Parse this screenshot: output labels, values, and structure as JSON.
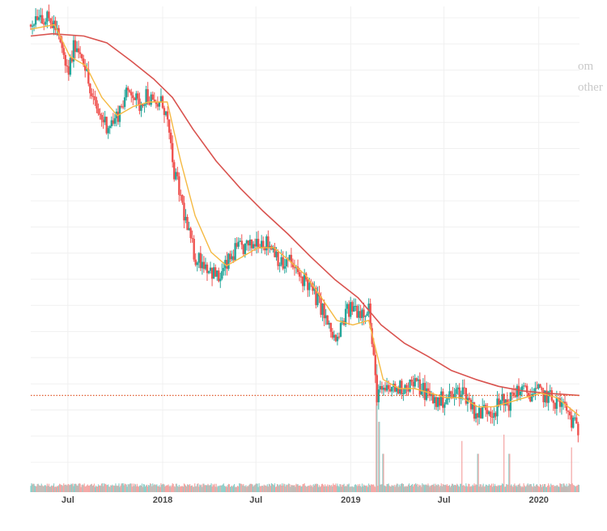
{
  "chart_data": {
    "type": "candlestick",
    "title": "",
    "xlabel": "",
    "ylabel": "",
    "x_tick_labels": [
      "Jul",
      "2018",
      "Jul",
      "2019",
      "Jul",
      "2020"
    ],
    "x_range": [
      "2017-04-20",
      "2020-03-20"
    ],
    "y_range_relative": [
      0,
      100
    ],
    "grid": true,
    "colors": {
      "up": "#26a69a",
      "down": "#ef5350",
      "ma_short": "#f5b942",
      "ma_long": "#d9534f",
      "price_line": "#e05a2b",
      "volume_up": "#8fcfc9",
      "volume_down": "#f4a5a3",
      "grid": "#f0f0f0"
    },
    "price_line_level": 14.5,
    "series": [
      {
        "name": "",
        "kind": "close",
        "points": [
          [
            "2017-04-20",
            96
          ],
          [
            "2017-05-05",
            99
          ],
          [
            "2017-05-20",
            97
          ],
          [
            "2017-06-05",
            96
          ],
          [
            "2017-06-20",
            90
          ],
          [
            "2017-07-01",
            85
          ],
          [
            "2017-07-15",
            92
          ],
          [
            "2017-07-31",
            89
          ],
          [
            "2017-08-15",
            80
          ],
          [
            "2017-09-01",
            76
          ],
          [
            "2017-09-15",
            74
          ],
          [
            "2017-10-01",
            75
          ],
          [
            "2017-10-15",
            79
          ],
          [
            "2017-11-01",
            82
          ],
          [
            "2017-11-15",
            78
          ],
          [
            "2017-12-01",
            81
          ],
          [
            "2017-12-15",
            78
          ],
          [
            "2018-01-01",
            79
          ],
          [
            "2018-01-10",
            75
          ],
          [
            "2018-01-20",
            65
          ],
          [
            "2018-02-05",
            58
          ],
          [
            "2018-02-20",
            50
          ],
          [
            "2018-03-05",
            45
          ],
          [
            "2018-03-20",
            44
          ],
          [
            "2018-04-05",
            42
          ],
          [
            "2018-04-20",
            40
          ],
          [
            "2018-05-05",
            43
          ],
          [
            "2018-05-20",
            46
          ],
          [
            "2018-06-05",
            47
          ],
          [
            "2018-06-20",
            47
          ],
          [
            "2018-07-05",
            49
          ],
          [
            "2018-07-20",
            48
          ],
          [
            "2018-08-05",
            47
          ],
          [
            "2018-08-20",
            43
          ],
          [
            "2018-09-05",
            44
          ],
          [
            "2018-09-20",
            41
          ],
          [
            "2018-10-05",
            40
          ],
          [
            "2018-10-20",
            37
          ],
          [
            "2018-11-05",
            34
          ],
          [
            "2018-11-20",
            29
          ],
          [
            "2018-12-05",
            26
          ],
          [
            "2018-12-20",
            32
          ],
          [
            "2019-01-05",
            34
          ],
          [
            "2019-01-20",
            33
          ],
          [
            "2019-02-05",
            34
          ],
          [
            "2019-02-20",
            15
          ],
          [
            "2019-03-05",
            15
          ],
          [
            "2019-03-20",
            16
          ],
          [
            "2019-04-05",
            16
          ],
          [
            "2019-04-20",
            17
          ],
          [
            "2019-05-05",
            17
          ],
          [
            "2019-05-20",
            16
          ],
          [
            "2019-06-05",
            14
          ],
          [
            "2019-06-20",
            13
          ],
          [
            "2019-07-05",
            14
          ],
          [
            "2019-07-20",
            14.5
          ],
          [
            "2019-08-05",
            16
          ],
          [
            "2019-08-20",
            13
          ],
          [
            "2019-09-05",
            10
          ],
          [
            "2019-09-20",
            12
          ],
          [
            "2019-10-05",
            11
          ],
          [
            "2019-10-20",
            13
          ],
          [
            "2019-11-05",
            13
          ],
          [
            "2019-11-20",
            16
          ],
          [
            "2019-12-05",
            15
          ],
          [
            "2019-12-20",
            15
          ],
          [
            "2020-01-05",
            15
          ],
          [
            "2020-01-20",
            14
          ],
          [
            "2020-02-05",
            13
          ],
          [
            "2020-02-20",
            12
          ],
          [
            "2020-03-05",
            9
          ],
          [
            "2020-03-20",
            6
          ]
        ]
      },
      {
        "name": "",
        "kind": "moving_average_short",
        "points": [
          [
            "2017-04-20",
            95
          ],
          [
            "2017-06-05",
            96
          ],
          [
            "2017-07-05",
            89
          ],
          [
            "2017-08-05",
            87
          ],
          [
            "2017-09-05",
            80
          ],
          [
            "2017-10-05",
            76
          ],
          [
            "2017-11-05",
            78
          ],
          [
            "2017-12-05",
            79
          ],
          [
            "2018-01-10",
            79
          ],
          [
            "2018-02-05",
            66
          ],
          [
            "2018-03-05",
            54
          ],
          [
            "2018-04-05",
            46
          ],
          [
            "2018-05-05",
            43
          ],
          [
            "2018-06-05",
            45
          ],
          [
            "2018-07-05",
            47
          ],
          [
            "2018-08-05",
            47
          ],
          [
            "2018-09-05",
            44
          ],
          [
            "2018-10-05",
            41
          ],
          [
            "2018-11-05",
            36
          ],
          [
            "2018-12-05",
            31
          ],
          [
            "2019-01-05",
            30
          ],
          [
            "2019-02-05",
            31
          ],
          [
            "2019-03-05",
            18
          ],
          [
            "2019-04-05",
            16
          ],
          [
            "2019-05-05",
            16
          ],
          [
            "2019-06-05",
            15
          ],
          [
            "2019-07-05",
            14
          ],
          [
            "2019-08-05",
            14
          ],
          [
            "2019-09-05",
            12
          ],
          [
            "2019-10-05",
            12
          ],
          [
            "2019-11-05",
            13
          ],
          [
            "2019-12-05",
            14
          ],
          [
            "2020-01-05",
            15
          ],
          [
            "2020-02-05",
            14
          ],
          [
            "2020-03-20",
            10
          ]
        ]
      },
      {
        "name": "",
        "kind": "moving_average_long",
        "points": [
          [
            "2017-04-20",
            93.5
          ],
          [
            "2017-06-01",
            94
          ],
          [
            "2017-08-01",
            93.5
          ],
          [
            "2017-09-15",
            92
          ],
          [
            "2017-11-01",
            88
          ],
          [
            "2017-12-15",
            84
          ],
          [
            "2018-01-20",
            80
          ],
          [
            "2018-03-01",
            73
          ],
          [
            "2018-04-15",
            66
          ],
          [
            "2018-06-01",
            60
          ],
          [
            "2018-07-15",
            55
          ],
          [
            "2018-09-01",
            50
          ],
          [
            "2018-10-15",
            45
          ],
          [
            "2018-12-01",
            40
          ],
          [
            "2019-01-15",
            36
          ],
          [
            "2019-03-01",
            30
          ],
          [
            "2019-04-15",
            26
          ],
          [
            "2019-06-01",
            23
          ],
          [
            "2019-07-15",
            20
          ],
          [
            "2019-09-01",
            18
          ],
          [
            "2019-10-15",
            16.5
          ],
          [
            "2019-12-01",
            15.5
          ],
          [
            "2020-01-15",
            15
          ],
          [
            "2020-03-20",
            14.5
          ]
        ]
      }
    ],
    "volume": {
      "baseline_relative": 4,
      "spikes": [
        [
          "2019-02-20",
          100
        ],
        [
          "2019-02-25",
          55
        ],
        [
          "2019-03-05",
          30
        ],
        [
          "2019-08-05",
          40
        ],
        [
          "2019-09-05",
          30
        ],
        [
          "2019-10-25",
          45
        ],
        [
          "2019-11-05",
          30
        ],
        [
          "2020-03-05",
          35
        ]
      ]
    }
  },
  "background_text": {
    "line1": "om",
    "line2": "other"
  }
}
